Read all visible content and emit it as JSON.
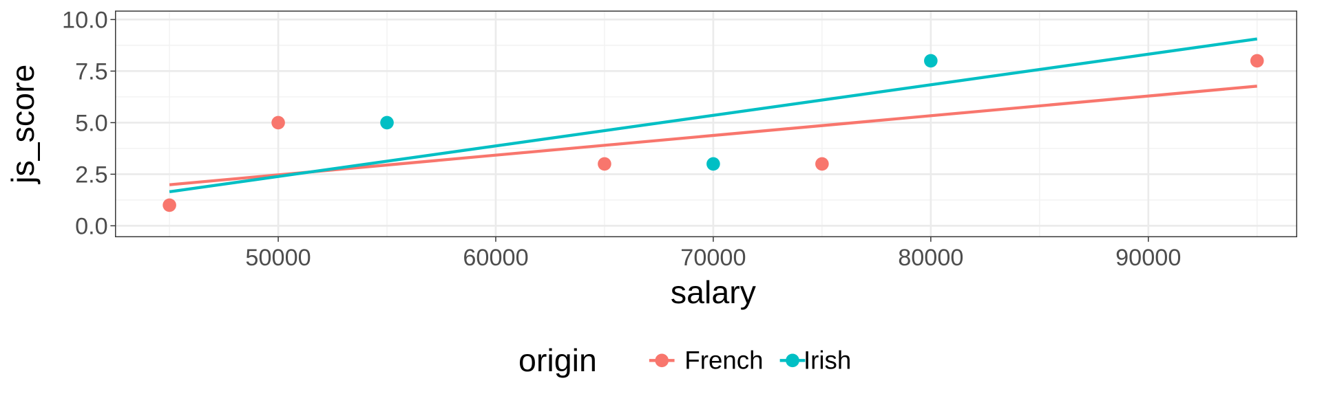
{
  "chart_data": {
    "type": "scatter",
    "xlabel": "salary",
    "ylabel": "js_score",
    "xlim": [
      42500,
      96800
    ],
    "ylim": [
      -0.5,
      10.4
    ],
    "x_ticks": [
      50000,
      60000,
      70000,
      80000,
      90000
    ],
    "x_tick_labels": [
      "50000",
      "60000",
      "70000",
      "80000",
      "90000"
    ],
    "y_ticks": [
      0,
      2.5,
      5,
      7.5,
      10
    ],
    "y_tick_labels": [
      "0.0",
      "2.5",
      "5.0",
      "7.5",
      "10.0"
    ],
    "grid": true,
    "legend": {
      "title": "origin",
      "placement": "bottom"
    },
    "series": [
      {
        "name": "French",
        "color": "#F8766D",
        "points": [
          [
            45000,
            1
          ],
          [
            50000,
            5
          ],
          [
            65000,
            3
          ],
          [
            75000,
            3
          ],
          [
            95000,
            8
          ]
        ],
        "fit_line": [
          [
            45000,
            1.99
          ],
          [
            95000,
            6.77
          ]
        ]
      },
      {
        "name": "Irish",
        "color": "#00BFC4",
        "points": [
          [
            55000,
            5
          ],
          [
            70000,
            3
          ],
          [
            80000,
            8
          ]
        ],
        "fit_line": [
          [
            45000,
            1.65
          ],
          [
            95000,
            9.06
          ]
        ]
      }
    ]
  }
}
